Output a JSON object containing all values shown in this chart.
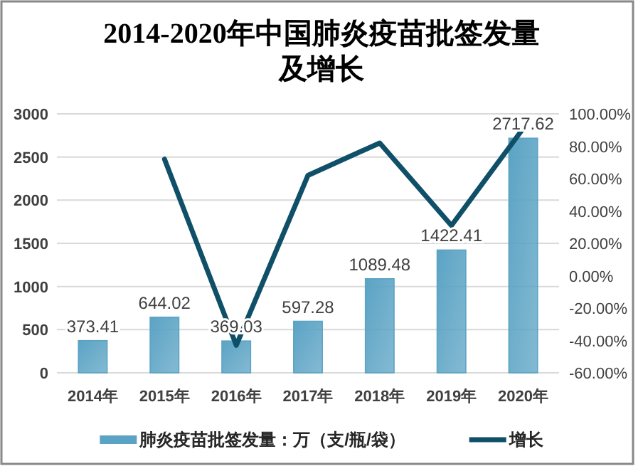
{
  "chart_data": {
    "type": "bar",
    "title": "2014-2020年中国肺炎疫苗批签发量及增长",
    "categories": [
      "2014年",
      "2015年",
      "2016年",
      "2017年",
      "2018年",
      "2019年",
      "2020年"
    ],
    "series": [
      {
        "name": "肺炎疫苗批签发量：万（支/瓶/袋）",
        "color": "#5ba3c4",
        "values": [
          373.41,
          644.02,
          369.03,
          597.28,
          1089.48,
          1422.41,
          2717.62
        ],
        "value_labels": [
          "373.41",
          "644.02",
          "369.03",
          "597.28",
          "1089.48",
          "1422.41",
          "2717.62"
        ]
      },
      {
        "name": "增长",
        "type": "line",
        "axis": "y2",
        "color": "#0f5068",
        "values": [
          null,
          72,
          -43,
          62,
          82,
          31,
          91
        ]
      }
    ],
    "ylim": [
      0,
      3000
    ],
    "yticks": [
      0,
      500,
      1000,
      1500,
      2000,
      2500,
      3000
    ],
    "y2lim": [
      -60,
      100
    ],
    "y2ticks": [
      {
        "value": -60,
        "label": "-60.00%"
      },
      {
        "value": -40,
        "label": "-40.00%"
      },
      {
        "value": -20,
        "label": "-20.00%"
      },
      {
        "value": 0,
        "label": "0.00%"
      },
      {
        "value": 20,
        "label": "20.00%"
      },
      {
        "value": 40,
        "label": "40.00%"
      },
      {
        "value": 60,
        "label": "60.00%"
      },
      {
        "value": 80,
        "label": "80.00%"
      },
      {
        "value": 100,
        "label": "100.00%"
      }
    ],
    "grid": "y",
    "legend": "bottom",
    "marker": "none",
    "line_style": "solid"
  }
}
